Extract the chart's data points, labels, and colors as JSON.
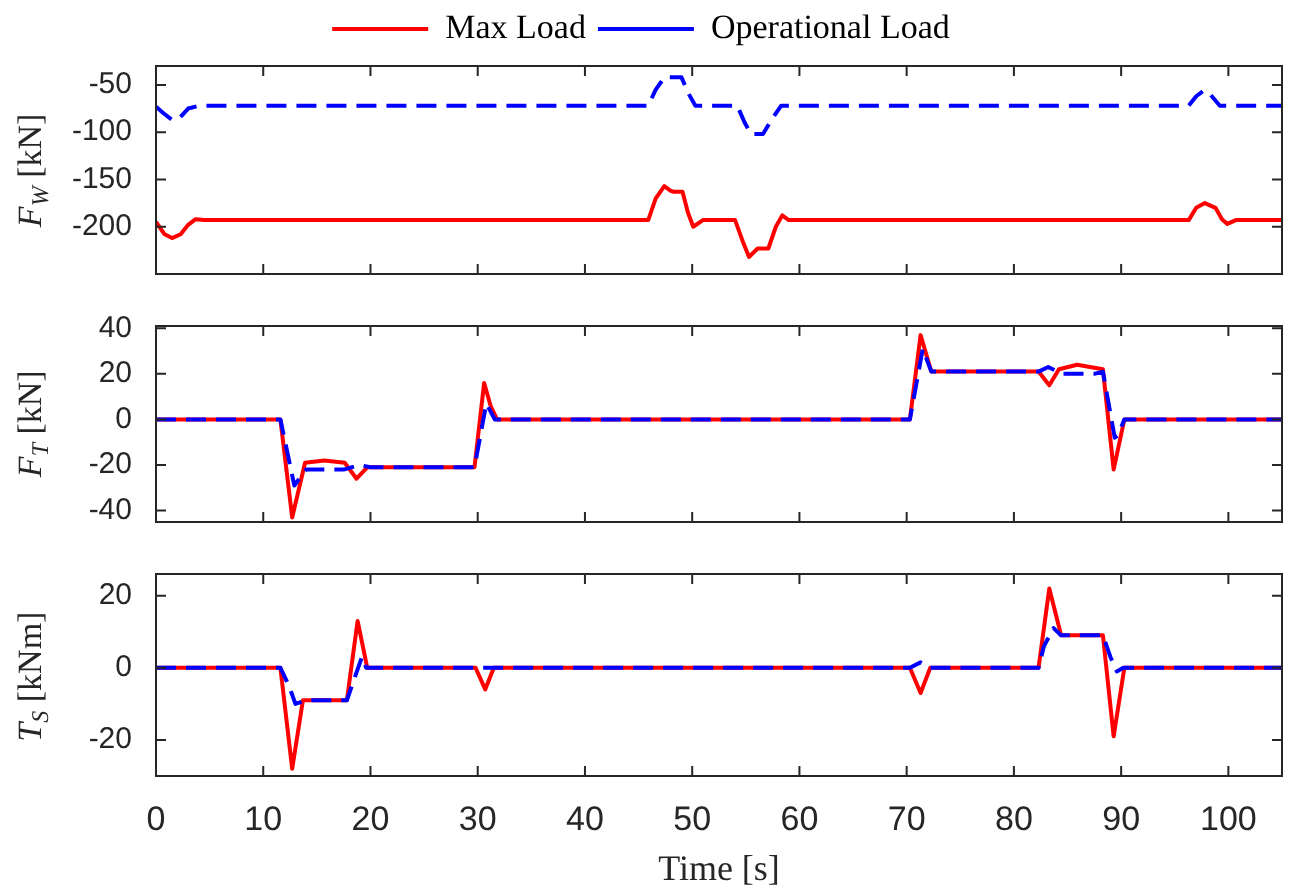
{
  "chart_data": [
    {
      "type": "line",
      "ylabel": "F$_{W}$ [kN]",
      "legend": "top",
      "grid": false,
      "tick_labels": "y",
      "xlim": [
        0,
        105
      ],
      "xticks": [
        0,
        10,
        20,
        30,
        40,
        50,
        60,
        70,
        80,
        90,
        100
      ],
      "ylim": [
        -250,
        -30
      ],
      "yticks": [
        -200,
        -150,
        -100,
        -50
      ],
      "series": [
        {
          "name": "Max Load",
          "color": "#ff0000",
          "line_style": "solid",
          "x": [
            0,
            0.8,
            1.5,
            2.3,
            3,
            3.7,
            4.5,
            45.9,
            46.6,
            47.4,
            48,
            48.3,
            49.1,
            49.6,
            50.1,
            51,
            54,
            54.7,
            55.3,
            56.1,
            57.1,
            57.8,
            58.4,
            59,
            96.3,
            97,
            97.8,
            98.8,
            99.4,
            99.9,
            100.7,
            105
          ],
          "values": [
            -195,
            -208,
            -212,
            -208,
            -198,
            -192,
            -193,
            -193,
            -170,
            -157,
            -162,
            -163,
            -163,
            -185,
            -200,
            -193,
            -193,
            -215,
            -232,
            -223,
            -223,
            -200,
            -188,
            -193,
            -193,
            -180,
            -175,
            -180,
            -192,
            -197,
            -193,
            -193
          ]
        },
        {
          "name": "Operational Load",
          "color": "#0000ff",
          "line_style": "dashed",
          "x": [
            0,
            0.7,
            1.5,
            2.2,
            3,
            4,
            45.9,
            46.6,
            47.4,
            49,
            49.7,
            50.3,
            54.2,
            54.9,
            55.5,
            56.6,
            57.5,
            58.3,
            96.3,
            97,
            97.7,
            98.3,
            99.2,
            105
          ],
          "values": [
            -73,
            -80,
            -87,
            -85,
            -75,
            -72,
            -72,
            -55,
            -42,
            -42,
            -60,
            -72,
            -72,
            -90,
            -102,
            -102,
            -85,
            -72,
            -72,
            -62,
            -56,
            -60,
            -72,
            -72
          ]
        }
      ]
    },
    {
      "type": "line",
      "ylabel": "F$_{T}$ [kN]",
      "grid": false,
      "tick_labels": "y",
      "xlim": [
        0,
        105
      ],
      "xticks": [
        0,
        10,
        20,
        30,
        40,
        50,
        60,
        70,
        80,
        90,
        100
      ],
      "ylim": [
        -45,
        41
      ],
      "yticks": [
        -40,
        -20,
        0,
        20,
        40
      ],
      "series": [
        {
          "color": "#ff0000",
          "line_style": "solid",
          "x": [
            0,
            11.6,
            12.7,
            13.9,
            15.7,
            17.6,
            18.7,
            19.7,
            29.7,
            30.6,
            31.2,
            31.8,
            70.3,
            71.3,
            72.3,
            82.3,
            83.3,
            84.2,
            85.9,
            88.3,
            89.3,
            90.3,
            105
          ],
          "values": [
            0,
            0,
            -43,
            -19,
            -18,
            -19,
            -26,
            -21,
            -21,
            16,
            6,
            0,
            0,
            37,
            21,
            21,
            15,
            22,
            24,
            22,
            -22,
            0,
            0
          ]
        },
        {
          "color": "#0000ff",
          "line_style": "dashed",
          "x": [
            0,
            11.6,
            12.9,
            14,
            17.5,
            19,
            20,
            29.7,
            30.8,
            31.6,
            70.3,
            71.5,
            72.3,
            82.3,
            83.2,
            84.5,
            87.5,
            88.3,
            89.4,
            89.7,
            90.3,
            105
          ],
          "values": [
            0,
            0,
            -29,
            -22,
            -22,
            -20,
            -21,
            -21,
            7,
            0,
            0,
            31,
            21,
            21,
            23,
            20,
            20,
            21,
            -8,
            -7,
            0,
            0
          ]
        }
      ]
    },
    {
      "type": "line",
      "ylabel": "T$_{S}$ [kNm]",
      "xlabel": "Time [s]",
      "grid": false,
      "xlim": [
        0,
        105
      ],
      "xticks": [
        0,
        10,
        20,
        30,
        40,
        50,
        60,
        70,
        80,
        90,
        100
      ],
      "ylim": [
        -30,
        26
      ],
      "yticks": [
        -20,
        0,
        20
      ],
      "series": [
        {
          "color": "#ff0000",
          "line_style": "solid",
          "x": [
            0,
            11.6,
            12.7,
            13.7,
            17.8,
            18.8,
            19.7,
            29.8,
            30.7,
            31.5,
            70.3,
            71.3,
            72.2,
            82.3,
            83.3,
            84.4,
            88.3,
            89.3,
            90.3,
            105
          ],
          "values": [
            0,
            0,
            -28,
            -9,
            -9,
            13,
            0,
            0,
            -6,
            0,
            0,
            -7,
            0,
            0,
            22,
            9,
            9,
            -19,
            0,
            0
          ]
        },
        {
          "color": "#0000ff",
          "line_style": "dashed",
          "x": [
            0,
            11.6,
            12.4,
            13,
            14,
            17.8,
            19.2,
            19.6,
            70.3,
            71.3,
            72.2,
            82.3,
            82.8,
            83.7,
            84.4,
            88.3,
            89,
            89.6,
            90.2,
            105
          ],
          "values": [
            0,
            0,
            -5,
            -10,
            -9,
            -9,
            3,
            0,
            0,
            1.5,
            0,
            0,
            6,
            11,
            9,
            9,
            3,
            -1,
            0,
            0
          ]
        }
      ]
    }
  ]
}
